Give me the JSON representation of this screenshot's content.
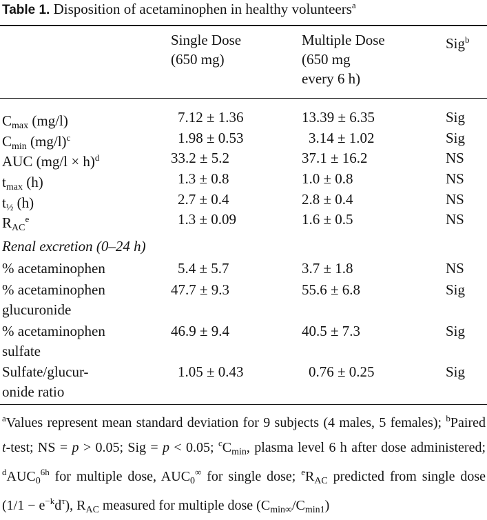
{
  "table": {
    "number": "Table 1.",
    "title": "Disposition of acetaminophen in healthy volunteers",
    "title_sup": "a"
  },
  "headers": {
    "single_line1": "Single Dose",
    "single_line2": "(650 mg)",
    "multi_line1": "Multiple Dose",
    "multi_line2": "(650 mg",
    "multi_line3": "every 6 h)",
    "sig": "Sig",
    "sig_sup": "b"
  },
  "rows": [
    {
      "label": "C",
      "label_sub": "max",
      "label_rest": " (mg/l)",
      "label_sup": "",
      "single": "7.12 ± 1.36",
      "multiple": "13.39 ±  6.35",
      "sig": "Sig"
    },
    {
      "label": "C",
      "label_sub": "min",
      "label_rest": " (mg/l)",
      "label_sup": "c",
      "single": "1.98 ± 0.53",
      "multiple": "3.14 ±  1.02",
      "sig": "Sig"
    },
    {
      "label": "AUC (mg/l × h)",
      "label_sub": "",
      "label_rest": "",
      "label_sup": "d",
      "single": "33.2  ± 5.2",
      "multiple": "37.1  ± 16.2",
      "sig": "NS"
    },
    {
      "label": "t",
      "label_sub": "max",
      "label_rest": " (h)",
      "label_sup": "",
      "single": "1.3  ± 0.8",
      "multiple": "1.0  ±  0.8",
      "sig": "NS"
    },
    {
      "label": "t",
      "label_sub": "½",
      "label_rest": " (h)",
      "label_sup": "",
      "single": "2.7  ± 0.4",
      "multiple": "2.8  ±  0.4",
      "sig": "NS"
    },
    {
      "label": "R",
      "label_sub": "AC",
      "label_rest": "",
      "label_sup": "e",
      "single": "1.3  ± 0.09",
      "multiple": "1.6  ±  0.5",
      "sig": "NS"
    }
  ],
  "section_title": "Renal excretion (0–24 h)",
  "renal_rows": [
    {
      "label1": "% acetaminophen",
      "label2": "",
      "single": "5.4  ± 5.7",
      "multiple": "3.7  ±  1.8",
      "sig": "NS"
    },
    {
      "label1": "% acetaminophen",
      "label2": "glucuronide",
      "single": "47.7  ± 9.3",
      "multiple": "55.6  ±  6.8",
      "sig": "Sig"
    },
    {
      "label1": "% acetaminophen",
      "label2": "sulfate",
      "single": "46.9  ± 9.4",
      "multiple": "40.5  ±  7.3",
      "sig": "Sig"
    },
    {
      "label1": "Sulfate/glucur-",
      "label2": "onide ratio",
      "single": "1.05 ± 0.43",
      "multiple": "0.76 ±  0.25",
      "sig": "Sig"
    }
  ],
  "footnote": {
    "a_mark": "a",
    "a_text": "Values represent mean standard deviation for 9 subjects (4 males, 5 females); ",
    "b_mark": "b",
    "b_text": "Paired ",
    "b_italic": "t",
    "b_text2": "-test; NS = ",
    "p1": "p",
    "ns_rest": " > 0.05; Sig = ",
    "p2": "p",
    "sig_rest": " < 0.05; ",
    "c_mark": "c",
    "c_text1": "C",
    "c_sub": "min",
    "c_text2": ", plasma level 6 h after dose administered; ",
    "d_mark": "d",
    "d_text1": "AUC",
    "d_sub1": "0",
    "d_sup1": "6h",
    "d_text2": " for multiple dose, AUC",
    "d_sub2": "0",
    "d_sup2": "∞",
    "d_text3": " for single dose; ",
    "e_mark": "e",
    "e_text1": "R",
    "e_sub1": "AC",
    "e_text2": " predicted from single dose (1/1 − e",
    "e_sup": "−k",
    "e_text3": "d",
    "e_sup2": "τ",
    "e_text4": "), R",
    "e_sub2": "AC",
    "e_text5": " measured for multiple dose (C",
    "e_sub3": "min∞",
    "e_text6": "/C",
    "e_sub4": "min1",
    "e_text7": ")"
  }
}
